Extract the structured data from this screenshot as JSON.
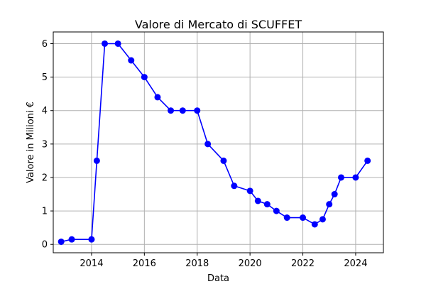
{
  "chart_data": {
    "type": "line",
    "title": "Valore di Mercato di SCUFFET",
    "xlabel": "Data",
    "ylabel": "Valore in Milioni €",
    "xlim": [
      2012.55,
      2025.05
    ],
    "ylim": [
      -0.25,
      6.35
    ],
    "x_ticks": [
      {
        "value": 2014,
        "label": "2014"
      },
      {
        "value": 2016,
        "label": "2016"
      },
      {
        "value": 2018,
        "label": "2018"
      },
      {
        "value": 2020,
        "label": "2020"
      },
      {
        "value": 2022,
        "label": "2022"
      },
      {
        "value": 2024,
        "label": "2024"
      }
    ],
    "y_ticks": [
      {
        "value": 0,
        "label": "0"
      },
      {
        "value": 1,
        "label": "1"
      },
      {
        "value": 2,
        "label": "2"
      },
      {
        "value": 3,
        "label": "3"
      },
      {
        "value": 4,
        "label": "4"
      },
      {
        "value": 5,
        "label": "5"
      },
      {
        "value": 6,
        "label": "6"
      }
    ],
    "grid": true,
    "color": "#0000ff",
    "series": [
      {
        "points": [
          {
            "x": 2012.85,
            "y": 0.08
          },
          {
            "x": 2013.25,
            "y": 0.15
          },
          {
            "x": 2014.0,
            "y": 0.15
          },
          {
            "x": 2014.2,
            "y": 2.5
          },
          {
            "x": 2014.5,
            "y": 6.0
          },
          {
            "x": 2015.0,
            "y": 6.0
          },
          {
            "x": 2015.5,
            "y": 5.5
          },
          {
            "x": 2016.0,
            "y": 5.0
          },
          {
            "x": 2016.5,
            "y": 4.4
          },
          {
            "x": 2017.0,
            "y": 4.0
          },
          {
            "x": 2017.45,
            "y": 4.0
          },
          {
            "x": 2018.0,
            "y": 4.0
          },
          {
            "x": 2018.4,
            "y": 3.0
          },
          {
            "x": 2019.0,
            "y": 2.5
          },
          {
            "x": 2019.4,
            "y": 1.75
          },
          {
            "x": 2020.0,
            "y": 1.6
          },
          {
            "x": 2020.3,
            "y": 1.3
          },
          {
            "x": 2020.65,
            "y": 1.2
          },
          {
            "x": 2021.0,
            "y": 1.0
          },
          {
            "x": 2021.4,
            "y": 0.8
          },
          {
            "x": 2022.0,
            "y": 0.8
          },
          {
            "x": 2022.45,
            "y": 0.6
          },
          {
            "x": 2022.75,
            "y": 0.75
          },
          {
            "x": 2023.0,
            "y": 1.2
          },
          {
            "x": 2023.2,
            "y": 1.5
          },
          {
            "x": 2023.45,
            "y": 2.0
          },
          {
            "x": 2024.0,
            "y": 2.0
          },
          {
            "x": 2024.45,
            "y": 2.5
          }
        ]
      }
    ]
  }
}
